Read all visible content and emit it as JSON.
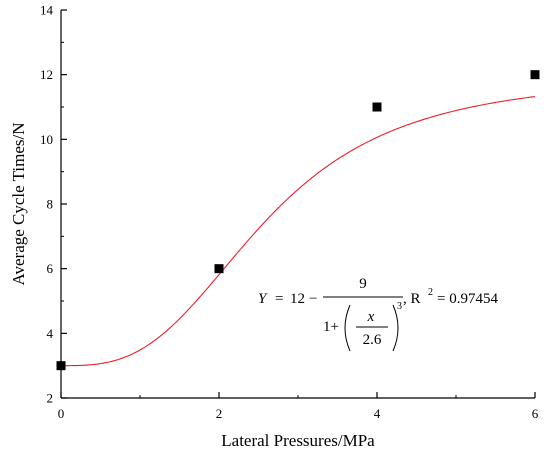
{
  "chart_data": {
    "type": "scatter",
    "xlabel": "Lateral Pressures/MPa",
    "ylabel": "Average Cycle Times/N",
    "xlim": [
      0,
      6
    ],
    "ylim": [
      2,
      14
    ],
    "x_ticks": [
      "0",
      "2",
      "4",
      "6"
    ],
    "y_ticks": [
      "2",
      "4",
      "6",
      "8",
      "10",
      "12",
      "14"
    ],
    "grid": false,
    "points": {
      "x": [
        0,
        2,
        4,
        6
      ],
      "y": [
        3,
        6,
        11,
        12
      ],
      "color": "#000000",
      "marker": "square"
    },
    "fit": {
      "type": "line",
      "color": "#e8202a",
      "A": 12,
      "B": 9,
      "C": 2.6,
      "p": 3
    },
    "annotation": {
      "Y": "Y",
      "eq": "=",
      "A": "12",
      "minus": "−",
      "num": "9",
      "one_plus": "1+",
      "x": "x",
      "den": "2.6",
      "exp": "3",
      "r2": ", R",
      "r2_exp": "2",
      "r2_value": "= 0.97454"
    }
  }
}
